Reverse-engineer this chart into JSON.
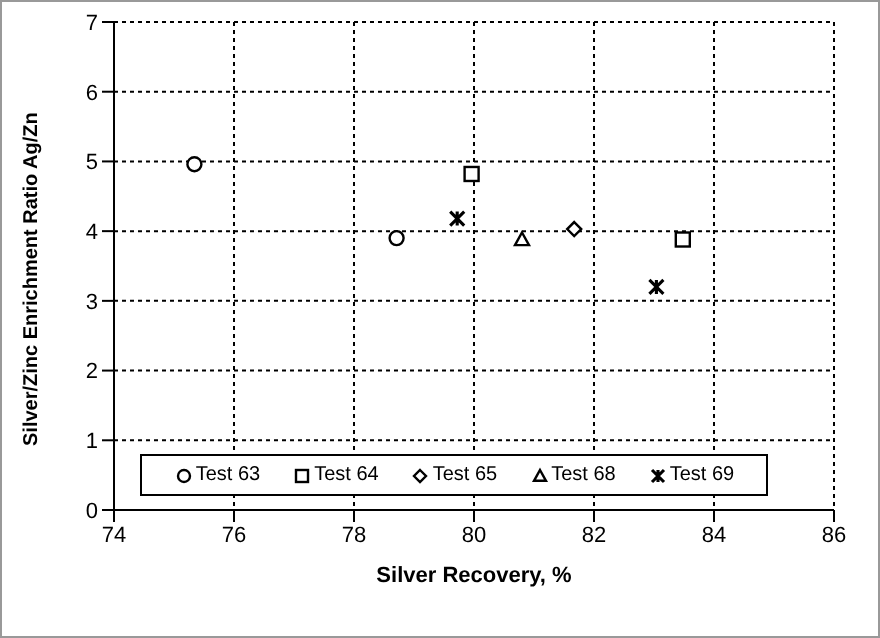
{
  "chart_data": {
    "type": "scatter",
    "xlabel": "Silver Recovery, %",
    "ylabel": "Silver/Zinc Enrichment Ratio Ag/Zn",
    "xlim": [
      74,
      86
    ],
    "xticks": [
      74,
      76,
      78,
      80,
      82,
      84,
      86
    ],
    "ylim": [
      0,
      7
    ],
    "yticks": [
      0,
      1,
      2,
      3,
      4,
      5,
      6,
      7
    ],
    "grid": true,
    "legend": "bottom",
    "series": [
      {
        "name": "Test 63",
        "color": "#000000",
        "marker": "circle",
        "x": [
          75.34,
          78.71
        ],
        "values": [
          4.96,
          3.9
        ]
      },
      {
        "name": "Test 64",
        "color": "#000000",
        "marker": "square",
        "x": [
          79.96,
          83.48
        ],
        "values": [
          4.82,
          3.88
        ]
      },
      {
        "name": "Test 65",
        "color": "#000000",
        "marker": "diamond",
        "x": [
          81.67
        ],
        "values": [
          4.03
        ]
      },
      {
        "name": "Test 68",
        "color": "#000000",
        "marker": "triangle",
        "x": [
          80.8
        ],
        "values": [
          3.88
        ]
      },
      {
        "name": "Test 69",
        "color": "#000000",
        "marker": "cross",
        "x": [
          79.72,
          83.04
        ],
        "values": [
          4.18,
          3.2
        ]
      }
    ]
  }
}
